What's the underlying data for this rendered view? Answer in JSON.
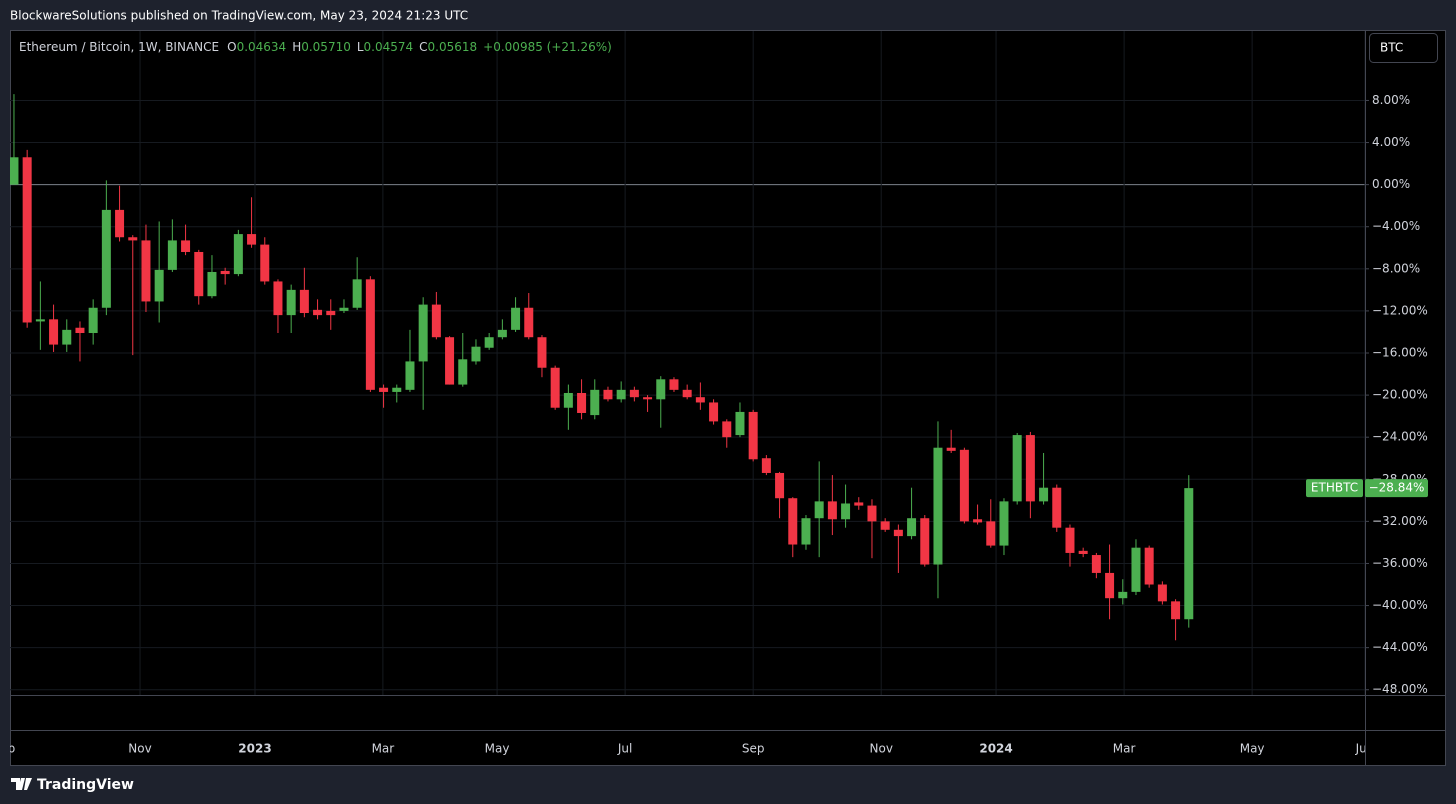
{
  "header": "BlockwareSolutions published on TradingView.com, May 23, 2024 21:23 UTC",
  "footer": "TradingView",
  "chart_data": {
    "type": "candlestick",
    "title": "Ethereum / Bitcoin, 1W, BINANCE",
    "ohlc_legend": [
      {
        "label": "O",
        "value": "0.04634"
      },
      {
        "label": "H",
        "value": "0.05710"
      },
      {
        "label": "L",
        "value": "0.04574"
      },
      {
        "label": "C",
        "value": "0.05618"
      }
    ],
    "change": "+0.00985 (+21.26%)",
    "currency_button": "BTC",
    "last_value_label": "−28.84%",
    "series": [
      {
        "name": "ETHBTC",
        "up_color": "#4caf50",
        "down_color": "#f23645",
        "open": [
          0,
          2.6,
          -13.0,
          -12.8,
          -15.2,
          -13.6,
          -14.1,
          -11.7,
          -2.4,
          -5.0,
          -5.3,
          -11.1,
          -8.1,
          -5.3,
          -6.4,
          -10.6,
          -8.2,
          -8.5,
          -4.7,
          -5.7,
          -9.2,
          -12.4,
          -10.0,
          -11.9,
          -12.0,
          -12.0,
          -11.7,
          -9.0,
          -19.3,
          -19.7,
          -19.5,
          -16.8,
          -11.4,
          -14.5,
          -19.0,
          -16.8,
          -15.5,
          -14.5,
          -13.8,
          -11.7,
          -14.5,
          -17.4,
          -21.2,
          -19.8,
          -21.9,
          -19.5,
          -20.4,
          -19.5,
          -20.2,
          -20.4,
          -18.5,
          -19.5,
          -20.2,
          -20.7,
          -22.5,
          -23.8,
          -21.6,
          -26.0,
          -27.4,
          -29.8,
          -34.2,
          -31.7,
          -30.1,
          -31.8,
          -30.2,
          -30.5,
          -32.0,
          -32.8,
          -33.4,
          -31.7,
          -36.1,
          -25.0,
          -25.2,
          -31.8,
          -32.0,
          -34.3,
          -30.1,
          -23.8,
          -30.1,
          -28.8,
          -32.6,
          -34.8,
          -35.2,
          -36.9,
          -39.3,
          -38.7,
          -34.5,
          -38.0,
          -39.6,
          -41.3
        ],
        "high": [
          8.6,
          3.3,
          -9.2,
          -11.4,
          -12.8,
          -13.0,
          -10.9,
          0.4,
          -0.1,
          -4.8,
          -3.8,
          -3.5,
          -3.3,
          -3.8,
          -6.2,
          -6.7,
          -7.9,
          -4.3,
          -1.2,
          -5.0,
          -9.0,
          -9.5,
          -7.9,
          -10.9,
          -10.9,
          -10.9,
          -6.9,
          -8.7,
          -19.0,
          -19.0,
          -13.8,
          -10.7,
          -10.2,
          -14.4,
          -14.1,
          -14.7,
          -14.1,
          -12.8,
          -10.7,
          -10.3,
          -14.3,
          -17.2,
          -19.0,
          -18.5,
          -18.5,
          -19.2,
          -18.7,
          -19.2,
          -20.0,
          -18.2,
          -18.3,
          -19.0,
          -18.8,
          -20.4,
          -22.3,
          -20.7,
          -21.4,
          -25.7,
          -27.3,
          -29.7,
          -31.4,
          -26.3,
          -27.6,
          -28.5,
          -29.7,
          -29.9,
          -31.7,
          -32.3,
          -28.8,
          -31.4,
          -22.5,
          -23.3,
          -25.0,
          -30.4,
          -29.9,
          -29.8,
          -23.6,
          -23.5,
          -25.5,
          -28.5,
          -32.3,
          -34.5,
          -35.0,
          -34.2,
          -37.5,
          -33.7,
          -34.3,
          -37.7,
          -39.4,
          -27.6
        ],
        "low": [
          0,
          -13.6,
          -15.7,
          -15.9,
          -15.9,
          -16.8,
          -15.2,
          -12.4,
          -5.4,
          -16.2,
          -12.1,
          -13.1,
          -8.3,
          -6.7,
          -11.4,
          -10.8,
          -9.5,
          -8.7,
          -6.0,
          -9.5,
          -14.1,
          -14.1,
          -12.6,
          -12.8,
          -13.8,
          -12.2,
          -11.9,
          -19.7,
          -21.2,
          -20.7,
          -19.7,
          -21.4,
          -14.7,
          -19.0,
          -19.2,
          -17.1,
          -15.7,
          -14.7,
          -14.0,
          -14.7,
          -18.3,
          -21.4,
          -23.3,
          -22.3,
          -22.3,
          -20.6,
          -20.7,
          -20.6,
          -21.6,
          -23.1,
          -19.7,
          -20.4,
          -21.4,
          -22.8,
          -25.0,
          -24.0,
          -26.3,
          -27.6,
          -31.7,
          -35.4,
          -34.7,
          -35.4,
          -33.3,
          -32.6,
          -30.9,
          -35.5,
          -33.0,
          -36.9,
          -33.7,
          -36.3,
          -39.3,
          -25.5,
          -32.2,
          -32.3,
          -34.5,
          -35.2,
          -30.4,
          -31.7,
          -30.4,
          -33.0,
          -36.3,
          -35.4,
          -37.4,
          -41.3,
          -39.9,
          -39.0,
          -38.3,
          -39.9,
          -43.3,
          -42.1
        ],
        "close": [
          2.6,
          -13.1,
          -12.8,
          -15.2,
          -13.8,
          -14.1,
          -11.7,
          -2.4,
          -5.0,
          -5.3,
          -11.1,
          -8.1,
          -5.3,
          -6.4,
          -10.6,
          -8.3,
          -8.5,
          -4.7,
          -5.7,
          -9.2,
          -12.4,
          -10.0,
          -12.2,
          -12.4,
          -12.4,
          -11.7,
          -9.0,
          -19.5,
          -19.7,
          -19.3,
          -16.8,
          -11.4,
          -14.5,
          -19.0,
          -16.6,
          -15.4,
          -14.5,
          -13.8,
          -11.7,
          -14.5,
          -17.4,
          -21.2,
          -19.8,
          -21.7,
          -19.5,
          -20.4,
          -19.5,
          -20.2,
          -20.4,
          -18.5,
          -19.5,
          -20.2,
          -20.7,
          -22.5,
          -24.0,
          -21.6,
          -26.1,
          -27.4,
          -29.8,
          -34.2,
          -31.7,
          -30.1,
          -31.8,
          -30.3,
          -30.5,
          -32.0,
          -32.8,
          -33.4,
          -31.7,
          -36.1,
          -25.0,
          -25.3,
          -32.0,
          -32.1,
          -34.3,
          -30.1,
          -23.8,
          -30.1,
          -28.8,
          -32.6,
          -35.0,
          -35.1,
          -36.9,
          -39.3,
          -38.7,
          -34.5,
          -38.0,
          -39.6,
          -41.3,
          -28.84
        ]
      }
    ],
    "xlim": [
      -0.3,
      102.35
    ],
    "xticks": [
      {
        "value": -0.76,
        "label": "Sep"
      },
      {
        "value": 9.55,
        "label": "Nov"
      },
      {
        "value": 18.26,
        "label": "2023"
      },
      {
        "value": 27.95,
        "label": "Mar"
      },
      {
        "value": 36.6,
        "label": "May"
      },
      {
        "value": 46.3,
        "label": "Jul"
      },
      {
        "value": 56.0,
        "label": "Sep"
      },
      {
        "value": 65.7,
        "label": "Nov"
      },
      {
        "value": 74.4,
        "label": "2024"
      },
      {
        "value": 84.1,
        "label": "Mar"
      },
      {
        "value": 93.8,
        "label": "May"
      },
      {
        "value": 102.35,
        "label": "Jun"
      }
    ],
    "ylim": [
      -48.5,
      14.6
    ],
    "yticks": [
      {
        "value": 8,
        "label": "8.00%"
      },
      {
        "value": 4,
        "label": "4.00%"
      },
      {
        "value": 0,
        "label": "0.00%"
      },
      {
        "value": -4,
        "label": "−4.00%"
      },
      {
        "value": -8,
        "label": "−8.00%"
      },
      {
        "value": -12,
        "label": "−12.00%"
      },
      {
        "value": -16,
        "label": "−16.00%"
      },
      {
        "value": -20,
        "label": "−20.00%"
      },
      {
        "value": -24,
        "label": "−24.00%"
      },
      {
        "value": -28,
        "label": "−28.00%"
      },
      {
        "value": -32,
        "label": "−32.00%"
      },
      {
        "value": -36,
        "label": "−36.00%"
      },
      {
        "value": -40,
        "label": "−40.00%"
      },
      {
        "value": -44,
        "label": "−44.00%"
      },
      {
        "value": -48,
        "label": "−48.00%"
      }
    ],
    "grid": true,
    "zero_line": true
  }
}
